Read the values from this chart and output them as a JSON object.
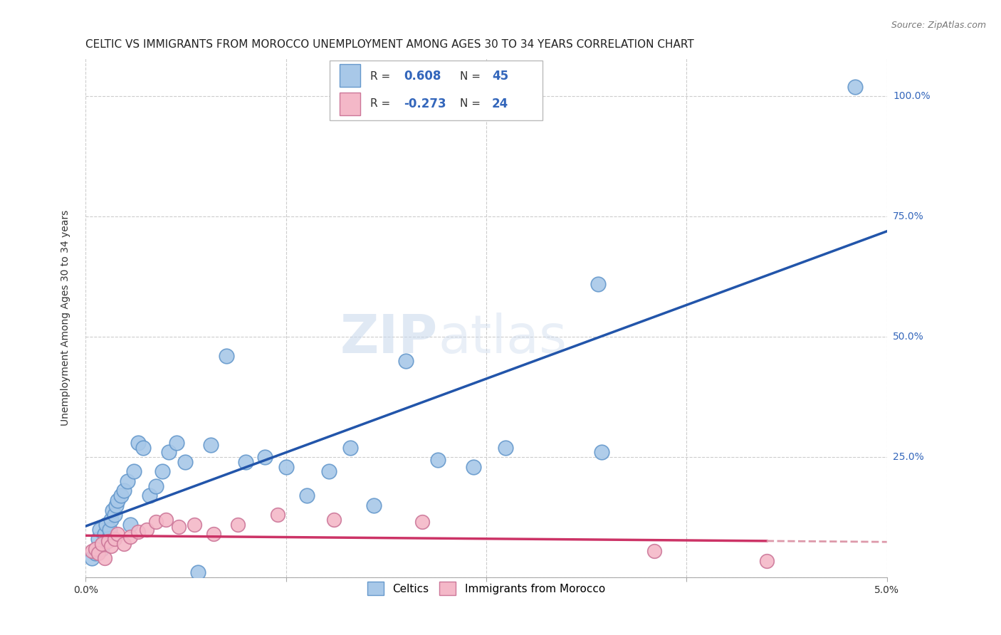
{
  "title": "CELTIC VS IMMIGRANTS FROM MOROCCO UNEMPLOYMENT AMONG AGES 30 TO 34 YEARS CORRELATION CHART",
  "source": "Source: ZipAtlas.com",
  "ylabel": "Unemployment Among Ages 30 to 34 years",
  "xlim": [
    0.0,
    5.0
  ],
  "ylim": [
    0.0,
    108.0
  ],
  "yticks": [
    0,
    25,
    50,
    75,
    100
  ],
  "ytick_labels": [
    "",
    "25.0%",
    "50.0%",
    "75.0%",
    "100.0%"
  ],
  "celtics_color": "#A8C8E8",
  "morocco_color": "#F4B8C8",
  "celtics_edge": "#6699CC",
  "morocco_edge": "#CC7799",
  "trend_celtics_color": "#2255AA",
  "trend_morocco_solid_color": "#CC3366",
  "trend_morocco_dashed_color": "#DD99AA",
  "watermark_zip_color": "#C8D8EC",
  "watermark_atlas_color": "#C8D8EC",
  "celtics_x": [
    0.04,
    0.06,
    0.08,
    0.09,
    0.1,
    0.11,
    0.12,
    0.13,
    0.14,
    0.15,
    0.16,
    0.17,
    0.18,
    0.19,
    0.2,
    0.22,
    0.24,
    0.26,
    0.28,
    0.3,
    0.33,
    0.36,
    0.4,
    0.44,
    0.48,
    0.52,
    0.57,
    0.62,
    0.7,
    0.78,
    0.88,
    1.0,
    1.12,
    1.25,
    1.38,
    1.52,
    1.65,
    1.8,
    2.0,
    2.2,
    2.42,
    2.62,
    3.2,
    3.22,
    4.8
  ],
  "celtics_y": [
    4.0,
    5.0,
    8.0,
    10.0,
    6.0,
    7.0,
    9.0,
    11.0,
    8.0,
    10.0,
    12.0,
    14.0,
    13.0,
    15.0,
    16.0,
    17.0,
    18.0,
    20.0,
    11.0,
    22.0,
    28.0,
    27.0,
    17.0,
    19.0,
    22.0,
    26.0,
    28.0,
    24.0,
    1.0,
    27.5,
    46.0,
    24.0,
    25.0,
    23.0,
    17.0,
    22.0,
    27.0,
    15.0,
    45.0,
    24.5,
    23.0,
    27.0,
    61.0,
    26.0,
    102.0
  ],
  "morocco_x": [
    0.04,
    0.06,
    0.08,
    0.1,
    0.12,
    0.14,
    0.16,
    0.18,
    0.2,
    0.24,
    0.28,
    0.33,
    0.38,
    0.44,
    0.5,
    0.58,
    0.68,
    0.8,
    0.95,
    1.2,
    1.55,
    2.1,
    3.55,
    4.25
  ],
  "morocco_y": [
    5.5,
    6.0,
    5.0,
    7.0,
    4.0,
    7.5,
    6.5,
    8.0,
    9.0,
    7.0,
    8.5,
    9.5,
    10.0,
    11.5,
    12.0,
    10.5,
    11.0,
    9.0,
    11.0,
    13.0,
    12.0,
    11.5,
    5.5,
    3.5
  ]
}
